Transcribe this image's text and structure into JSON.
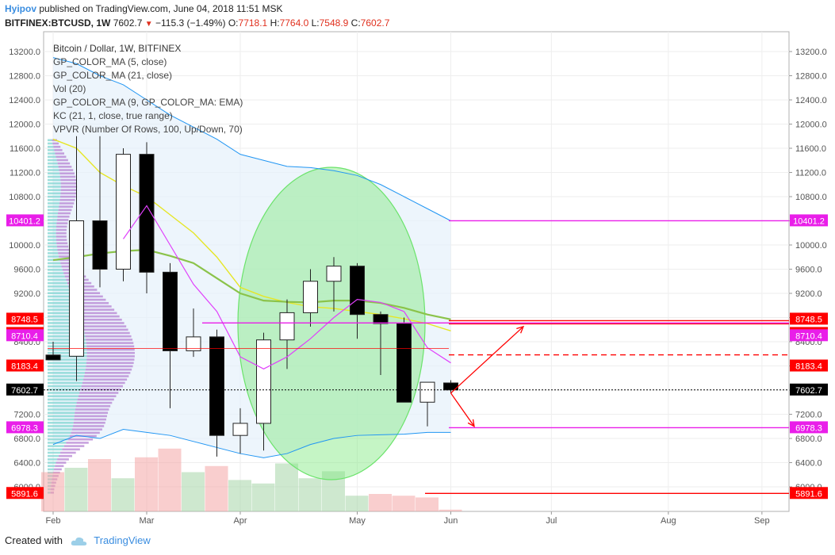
{
  "header": {
    "user": "Hyipov",
    "published": "published on TradingView.com, June 04, 2018 11:51 MSK",
    "symbol": "BITFINEX:BTCUSD, 1W",
    "last": "7602.7",
    "change": "−115.3 (−1.49%)",
    "o_label": "O:",
    "o_value": "7718.1",
    "h_label": "H:",
    "h_value": "7764.0",
    "l_label": "L:",
    "l_value": "7548.9",
    "c_label": "C:",
    "c_value": "7602.7"
  },
  "legend": [
    "Bitcoin / Dollar, 1W, BITFINEX",
    "GP_COLOR_MA (5, close)",
    "GP_COLOR_MA (21, close)",
    "Vol (20)",
    "GP_COLOR_MA (9, GP_COLOR_MA: EMA)",
    "KC (21, 1, close, true range)",
    "VPVR (Number Of Rows, 100, Up/Down, 70)"
  ],
  "footer": {
    "created": "Created with",
    "brand": "TradingView"
  },
  "colors": {
    "up_body": "#ffffff",
    "down_body": "#000000",
    "vol_up": "#a5d6a7",
    "vol_down": "#f4a6a6",
    "ma5": "#e040fb",
    "ma21": "#e6e625",
    "ema9": "#8bc34a",
    "kc": "#2196f3",
    "level_magenta": "#e91ee9",
    "level_red": "#ff0000",
    "ellipse": "#6be36b"
  },
  "chart_data": {
    "type": "candlestick",
    "symbol": "BITFINEX:BTCUSD",
    "timeframe": "1W",
    "ylim": [
      5750,
      13450
    ],
    "y_ticks": [
      6000,
      6400,
      6800,
      7200,
      7600,
      8000,
      8400,
      8800,
      9200,
      9600,
      10000,
      10400,
      10800,
      11200,
      11600,
      12000,
      12400,
      12800,
      13200
    ],
    "x_labels": [
      {
        "label": "Feb",
        "week": 0
      },
      {
        "label": "Mar",
        "week": 4
      },
      {
        "label": "Apr",
        "week": 8
      },
      {
        "label": "May",
        "week": 13
      },
      {
        "label": "Jun",
        "week": 17
      },
      {
        "label": "Jul",
        "week": 21.3
      },
      {
        "label": "Aug",
        "week": 26.3
      },
      {
        "label": "Sep",
        "week": 30.3
      }
    ],
    "candles": [
      {
        "o": 8180,
        "h": 8400,
        "l": 8100,
        "c": 8100
      },
      {
        "o": 8160,
        "h": 11800,
        "l": 7750,
        "c": 10400
      },
      {
        "o": 10400,
        "h": 11800,
        "l": 9300,
        "c": 9600
      },
      {
        "o": 9600,
        "h": 11600,
        "l": 9400,
        "c": 11500
      },
      {
        "o": 11500,
        "h": 11700,
        "l": 9200,
        "c": 9550
      },
      {
        "o": 9550,
        "h": 9700,
        "l": 7300,
        "c": 8250
      },
      {
        "o": 8250,
        "h": 8950,
        "l": 8150,
        "c": 8480
      },
      {
        "o": 8480,
        "h": 8600,
        "l": 6500,
        "c": 6850
      },
      {
        "o": 6850,
        "h": 7300,
        "l": 6550,
        "c": 7050
      },
      {
        "o": 7050,
        "h": 8550,
        "l": 6600,
        "c": 8430
      },
      {
        "o": 8430,
        "h": 9100,
        "l": 7950,
        "c": 8880
      },
      {
        "o": 8880,
        "h": 9600,
        "l": 8650,
        "c": 9400
      },
      {
        "o": 9400,
        "h": 9800,
        "l": 8900,
        "c": 9650
      },
      {
        "o": 9650,
        "h": 9700,
        "l": 8450,
        "c": 8850
      },
      {
        "o": 8850,
        "h": 8900,
        "l": 7850,
        "c": 8700
      },
      {
        "o": 8700,
        "h": 8800,
        "l": 7400,
        "c": 7400
      },
      {
        "o": 7400,
        "h": 7700,
        "l": 7000,
        "c": 7730
      },
      {
        "o": 7718.1,
        "h": 7764.0,
        "l": 7548.9,
        "c": 7602.7
      }
    ],
    "series": [
      {
        "name": "GP_COLOR_MA (5, close)",
        "values": [
          null,
          null,
          null,
          10100,
          10650,
          10000,
          9350,
          8900,
          8150,
          7950,
          8150,
          8450,
          8800,
          9100,
          9050,
          8900,
          8300,
          8050
        ]
      },
      {
        "name": "GP_COLOR_MA (21, close)",
        "values": [
          11750,
          11600,
          11200,
          10980,
          10800,
          10500,
          10200,
          9800,
          9300,
          9150,
          9050,
          8980,
          8950,
          8900,
          8850,
          8780,
          8700,
          8580
        ]
      },
      {
        "name": "GP_COLOR_MA (9, GP_COLOR_MA: EMA)",
        "values": [
          9750,
          9800,
          9860,
          9900,
          9920,
          9820,
          9700,
          9450,
          9200,
          9080,
          9060,
          9050,
          9080,
          9080,
          9040,
          8960,
          8850,
          8770
        ]
      },
      {
        "name": "KC (21, 1, close, true range)",
        "values": [
          13100,
          13000,
          12800,
          12650,
          12400,
          12150,
          11950,
          11750,
          11500,
          11400,
          11300,
          11280,
          11230,
          11150,
          11000,
          10800,
          10600,
          10400
        ]
      }
    ],
    "kc_lower": [
      6700,
      6850,
      6800,
      6950,
      6900,
      6850,
      6750,
      6650,
      6550,
      6480,
      6550,
      6700,
      6800,
      6850,
      6860,
      6870,
      6900,
      6900
    ],
    "volume": [
      {
        "v": 0.45,
        "dir": "down"
      },
      {
        "v": 0.5,
        "dir": "up"
      },
      {
        "v": 0.6,
        "dir": "down"
      },
      {
        "v": 0.38,
        "dir": "up"
      },
      {
        "v": 0.62,
        "dir": "down"
      },
      {
        "v": 0.72,
        "dir": "down"
      },
      {
        "v": 0.45,
        "dir": "up"
      },
      {
        "v": 0.52,
        "dir": "down"
      },
      {
        "v": 0.36,
        "dir": "up"
      },
      {
        "v": 0.32,
        "dir": "up"
      },
      {
        "v": 0.55,
        "dir": "up"
      },
      {
        "v": 0.38,
        "dir": "up"
      },
      {
        "v": 0.46,
        "dir": "up"
      },
      {
        "v": 0.18,
        "dir": "up"
      },
      {
        "v": 0.2,
        "dir": "down"
      },
      {
        "v": 0.18,
        "dir": "down"
      },
      {
        "v": 0.16,
        "dir": "down"
      },
      {
        "v": 0.02,
        "dir": "down"
      }
    ],
    "levels": [
      {
        "value": 10401.2,
        "label": "10401.2",
        "color": "#e91ee9",
        "style": "solid"
      },
      {
        "value": 8748.5,
        "label": "8748.5",
        "color": "#ff0000",
        "style": "solid"
      },
      {
        "value": 8748.5,
        "label": "8748.5",
        "color": "#ff0000",
        "style": "solid"
      },
      {
        "value": 8710.4,
        "label": "8710.4",
        "color": "#e91ee9",
        "style": "solid"
      },
      {
        "value": 8183.4,
        "label": "8183.4",
        "color": "#ff0000",
        "style": "dashed"
      },
      {
        "value": 7602.7,
        "label": "7602.7",
        "color": "#000000",
        "style": "dotted"
      },
      {
        "value": 6978.3,
        "label": "6978.3",
        "color": "#e91ee9",
        "style": "solid"
      },
      {
        "value": 5891.6,
        "label": "5891.6",
        "color": "#ff0000",
        "style": "solid"
      }
    ],
    "arrows": [
      {
        "from_week": 17,
        "from_y": 7550,
        "to_week": 20.1,
        "to_y": 8650
      },
      {
        "from_week": 17,
        "from_y": 7550,
        "to_week": 18.0,
        "to_y": 7000
      }
    ]
  }
}
